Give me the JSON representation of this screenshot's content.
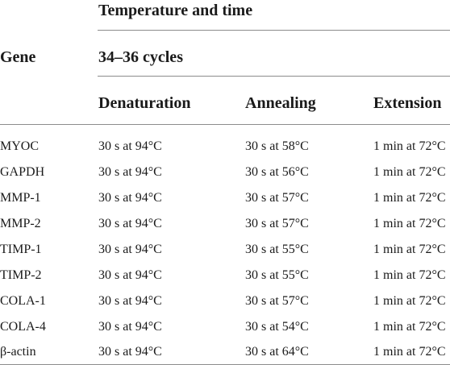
{
  "table": {
    "header": {
      "gene": "Gene",
      "group_title": "Temperature and time",
      "cycles": "34–36 cycles",
      "columns": [
        "Denaturation",
        "Annealing",
        "Extension"
      ]
    },
    "rows": [
      [
        "MYOC",
        "30 s at 94°C",
        "30 s at 58°C",
        "1 min at 72°C"
      ],
      [
        "GAPDH",
        "30 s at 94°C",
        "30 s at 56°C",
        "1 min at 72°C"
      ],
      [
        "MMP-1",
        "30 s at 94°C",
        "30 s at 57°C",
        "1 min at 72°C"
      ],
      [
        "MMP-2",
        "30 s at 94°C",
        "30 s at 57°C",
        "1 min at 72°C"
      ],
      [
        "TIMP-1",
        "30 s at 94°C",
        "30 s at 55°C",
        "1 min at 72°C"
      ],
      [
        "TIMP-2",
        "30 s at 94°C",
        "30 s at 55°C",
        "1 min at 72°C"
      ],
      [
        "COLA-1",
        "30 s at 94°C",
        "30 s at 57°C",
        "1 min at 72°C"
      ],
      [
        "COLA-4",
        "30 s at 94°C",
        "30 s at 54°C",
        "1 min at 72°C"
      ],
      [
        "β-actin",
        "30 s at 94°C",
        "30 s at 64°C",
        "1 min at 72°C"
      ]
    ]
  }
}
